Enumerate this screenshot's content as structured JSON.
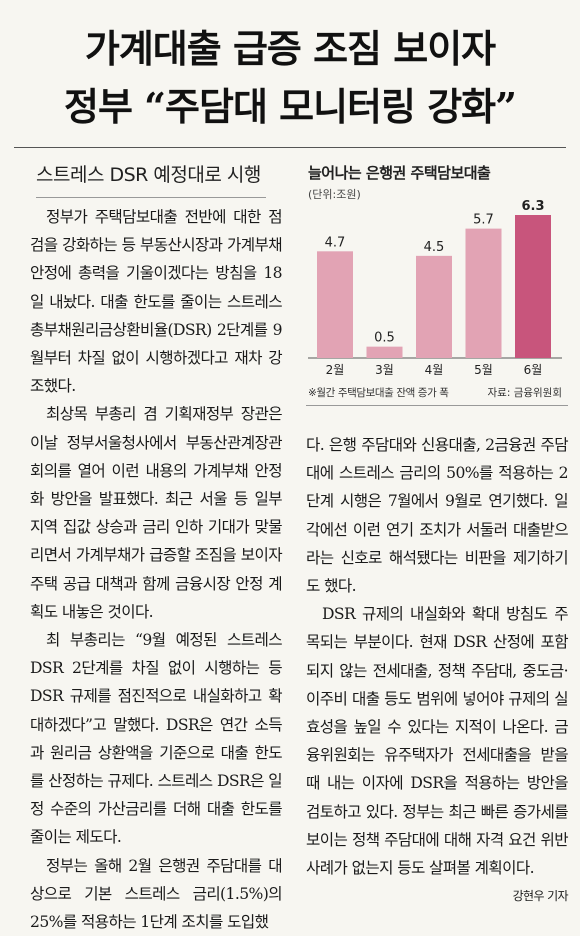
{
  "article": {
    "headline_line1": "가계대출 급증 조짐 보이자",
    "headline_line2": "정부 “주담대 모니터링 강화”",
    "subheadline": "스트레스 DSR 예정대로 시행",
    "left_paragraphs": [
      "정부가 주택담보대출 전반에 대한 점검을 강화하는 등 부동산시장과 가계부채 안정에 총력을 기울이겠다는 방침을 18일 내놨다. 대출 한도를 줄이는 스트레스 총부채원리금상환비율(DSR) 2단계를 9월부터 차질 없이 시행하겠다고 재차 강조했다.",
      "최상목 부총리 겸 기획재정부 장관은 이날 정부서울청사에서 부동산관계장관회의를 열어 이런 내용의 가계부채 안정화 방안을 발표했다. 최근 서울 등 일부 지역 집값 상승과 금리 인하 기대가 맞물리면서 가계부채가 급증할 조짐을 보이자 주택 공급 대책과 함께 금융시장 안정 계획도 내놓은 것이다.",
      "최 부총리는 “9월 예정된 스트레스 DSR 2단계를 차질 없이 시행하는 등 DSR 규제를 점진적으로 내실화하고 확대하겠다”고 말했다. DSR은 연간 소득과 원리금 상환액을 기준으로 대출 한도를 산정하는 규제다. 스트레스 DSR은 일정 수준의 가산금리를 더해 대출 한도를 줄이는 제도다.",
      "정부는 올해 2월 은행권 주담대를 대상으로 기본 스트레스 금리(1.5%)의 25%를 적용하는 1단계 조치를 도입했"
    ],
    "right_paragraphs": [
      "다. 은행 주담대와 신용대출, 2금융권 주담대에 스트레스 금리의 50%를 적용하는 2단계 시행은 7월에서 9월로 연기했다. 일각에선 이런 연기 조치가 서둘러 대출받으라는 신호로 해석됐다는 비판을 제기하기도 했다.",
      "DSR 규제의 내실화와 확대 방침도 주목되는 부분이다. 현재 DSR 산정에 포함되지 않는 전세대출, 정책 주담대, 중도금·이주비 대출 등도 범위에 넣어야 규제의 실효성을 높일 수 있다는 지적이 나온다. 금융위원회는 유주택자가 전세대출을 받을 때 내는 이자에 DSR을 적용하는 방안을 검토하고 있다. 정부는 최근 빠른 증가세를 보이는 정책 주담대에 대해 자격 요건 위반 사례가 없는지 등도 살펴볼 계획이다."
    ],
    "byline": "강현우 기자"
  },
  "chart": {
    "title": "늘어나는 은행권 주택담보대출",
    "unit": "(단위:조원)",
    "note": "※월간 주택담보대출 잔액 증가 폭",
    "source": "자료: 금융위원회"
  },
  "chart_data": {
    "type": "bar",
    "categories": [
      "2월",
      "3월",
      "4월",
      "5월",
      "6월"
    ],
    "values": [
      4.7,
      0.5,
      4.5,
      5.7,
      6.3
    ],
    "value_labels": [
      "4.7",
      "0.5",
      "4.5",
      "5.7",
      "6.3"
    ],
    "title": "늘어나는 은행권 주택담보대출",
    "ylabel": "(단위:조원)",
    "xlabel": "",
    "ylim": [
      0,
      6.3
    ],
    "colors": [
      "#e2a3b4",
      "#e2a3b4",
      "#e2a3b4",
      "#e2a3b4",
      "#c8557c"
    ],
    "grid": false
  }
}
